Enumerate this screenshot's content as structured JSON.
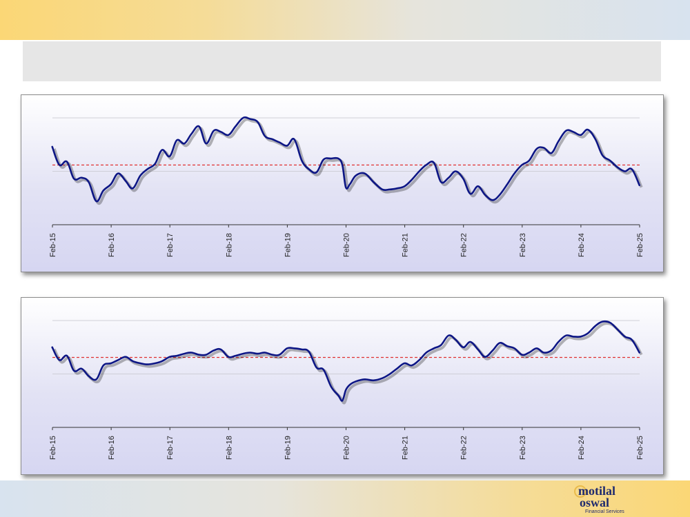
{
  "colors": {
    "line": "#0d1685",
    "avg_line": "#e03030",
    "top_band": "#fbd776",
    "bottom_band": "#fbd776"
  },
  "logo": {
    "line1": "motilal",
    "line2": "oswal",
    "sub": "Financial Services"
  },
  "chart_data": [
    {
      "type": "line",
      "x_tick_labels": [
        "Feb-15",
        "Feb-16",
        "Feb-17",
        "Feb-18",
        "Feb-19",
        "Feb-20",
        "Feb-21",
        "Feb-22",
        "Feb-23",
        "Feb-24",
        "Feb-25"
      ],
      "xlim": [
        2015.083,
        2025.083
      ],
      "ylim": [
        0,
        100
      ],
      "grid": "horizontal",
      "average": 55.9,
      "series": [
        {
          "x": [
            2015.08,
            2015.2,
            2015.33,
            2015.45,
            2015.58,
            2015.7,
            2015.83,
            2015.95,
            2016.08,
            2016.2,
            2016.33,
            2016.45,
            2016.58,
            2016.7,
            2016.83,
            2016.95,
            2017.08,
            2017.2,
            2017.33,
            2017.45,
            2017.58,
            2017.7,
            2017.83,
            2017.95,
            2018.08,
            2018.2,
            2018.33,
            2018.45,
            2018.58,
            2018.7,
            2018.83,
            2018.95,
            2019.08,
            2019.2,
            2019.33,
            2019.45,
            2019.58,
            2019.7,
            2019.83,
            2019.95,
            2020.02,
            2020.08,
            2020.15,
            2020.25,
            2020.4,
            2020.55,
            2020.7,
            2020.83,
            2020.95,
            2021.08,
            2021.2,
            2021.33,
            2021.45,
            2021.58,
            2021.7,
            2021.83,
            2021.95,
            2022.08,
            2022.2,
            2022.33,
            2022.45,
            2022.58,
            2022.7,
            2022.83,
            2022.95,
            2023.08,
            2023.2,
            2023.33,
            2023.45,
            2023.58,
            2023.7,
            2023.83,
            2023.95,
            2024.08,
            2024.2,
            2024.33,
            2024.45,
            2024.58,
            2024.7,
            2024.83,
            2024.95,
            2025.08
          ],
          "y": [
            73,
            56,
            59,
            43,
            44,
            40,
            22,
            32,
            38,
            48,
            41,
            34,
            46,
            52,
            57,
            70,
            64,
            79,
            76,
            85,
            92,
            76,
            88,
            87,
            84,
            92,
            100,
            99,
            96,
            83,
            80,
            77,
            74,
            80,
            60,
            52,
            49,
            61,
            62,
            62,
            56,
            35,
            38,
            46,
            48,
            40,
            33,
            33,
            34,
            36,
            42,
            50,
            56,
            58,
            40,
            44,
            50,
            43,
            29,
            36,
            28,
            23,
            28,
            38,
            48,
            56,
            60,
            71,
            72,
            67,
            78,
            88,
            87,
            84,
            89,
            80,
            65,
            60,
            54,
            50,
            52,
            37
          ]
        }
      ]
    },
    {
      "type": "line",
      "x_tick_labels": [
        "Feb-15",
        "Feb-16",
        "Feb-17",
        "Feb-18",
        "Feb-19",
        "Feb-20",
        "Feb-21",
        "Feb-22",
        "Feb-23",
        "Feb-24",
        "Feb-25"
      ],
      "xlim": [
        2015.083,
        2025.083
      ],
      "ylim": [
        0,
        100
      ],
      "grid": "horizontal",
      "average": 65.5,
      "series": [
        {
          "x": [
            2015.08,
            2015.2,
            2015.33,
            2015.45,
            2015.58,
            2015.7,
            2015.83,
            2015.95,
            2016.08,
            2016.2,
            2016.33,
            2016.45,
            2016.58,
            2016.7,
            2016.83,
            2016.95,
            2017.08,
            2017.2,
            2017.33,
            2017.45,
            2017.58,
            2017.7,
            2017.83,
            2017.95,
            2018.08,
            2018.2,
            2018.33,
            2018.45,
            2018.58,
            2018.7,
            2018.83,
            2018.95,
            2019.08,
            2019.2,
            2019.33,
            2019.45,
            2019.58,
            2019.7,
            2019.83,
            2019.95,
            2020.02,
            2020.08,
            2020.15,
            2020.25,
            2020.4,
            2020.55,
            2020.7,
            2020.83,
            2020.95,
            2021.08,
            2021.2,
            2021.33,
            2021.45,
            2021.58,
            2021.7,
            2021.83,
            2021.95,
            2022.08,
            2022.2,
            2022.33,
            2022.45,
            2022.58,
            2022.7,
            2022.83,
            2022.95,
            2023.08,
            2023.2,
            2023.33,
            2023.45,
            2023.58,
            2023.7,
            2023.83,
            2023.95,
            2024.08,
            2024.2,
            2024.33,
            2024.45,
            2024.58,
            2024.7,
            2024.83,
            2024.95,
            2025.08
          ],
          "y": [
            75,
            63,
            67,
            53,
            55,
            48,
            45,
            58,
            60,
            63,
            66,
            62,
            60,
            59,
            60,
            62,
            66,
            67,
            69,
            70,
            68,
            68,
            72,
            73,
            66,
            67,
            69,
            70,
            69,
            70,
            68,
            68,
            74,
            74,
            73,
            71,
            56,
            54,
            38,
            30,
            25,
            35,
            40,
            43,
            45,
            44,
            46,
            50,
            55,
            60,
            58,
            63,
            70,
            74,
            77,
            86,
            82,
            75,
            80,
            73,
            66,
            72,
            79,
            76,
            74,
            68,
            70,
            74,
            70,
            72,
            80,
            86,
            85,
            85,
            88,
            95,
            99,
            98,
            92,
            85,
            82,
            70
          ]
        }
      ]
    }
  ]
}
